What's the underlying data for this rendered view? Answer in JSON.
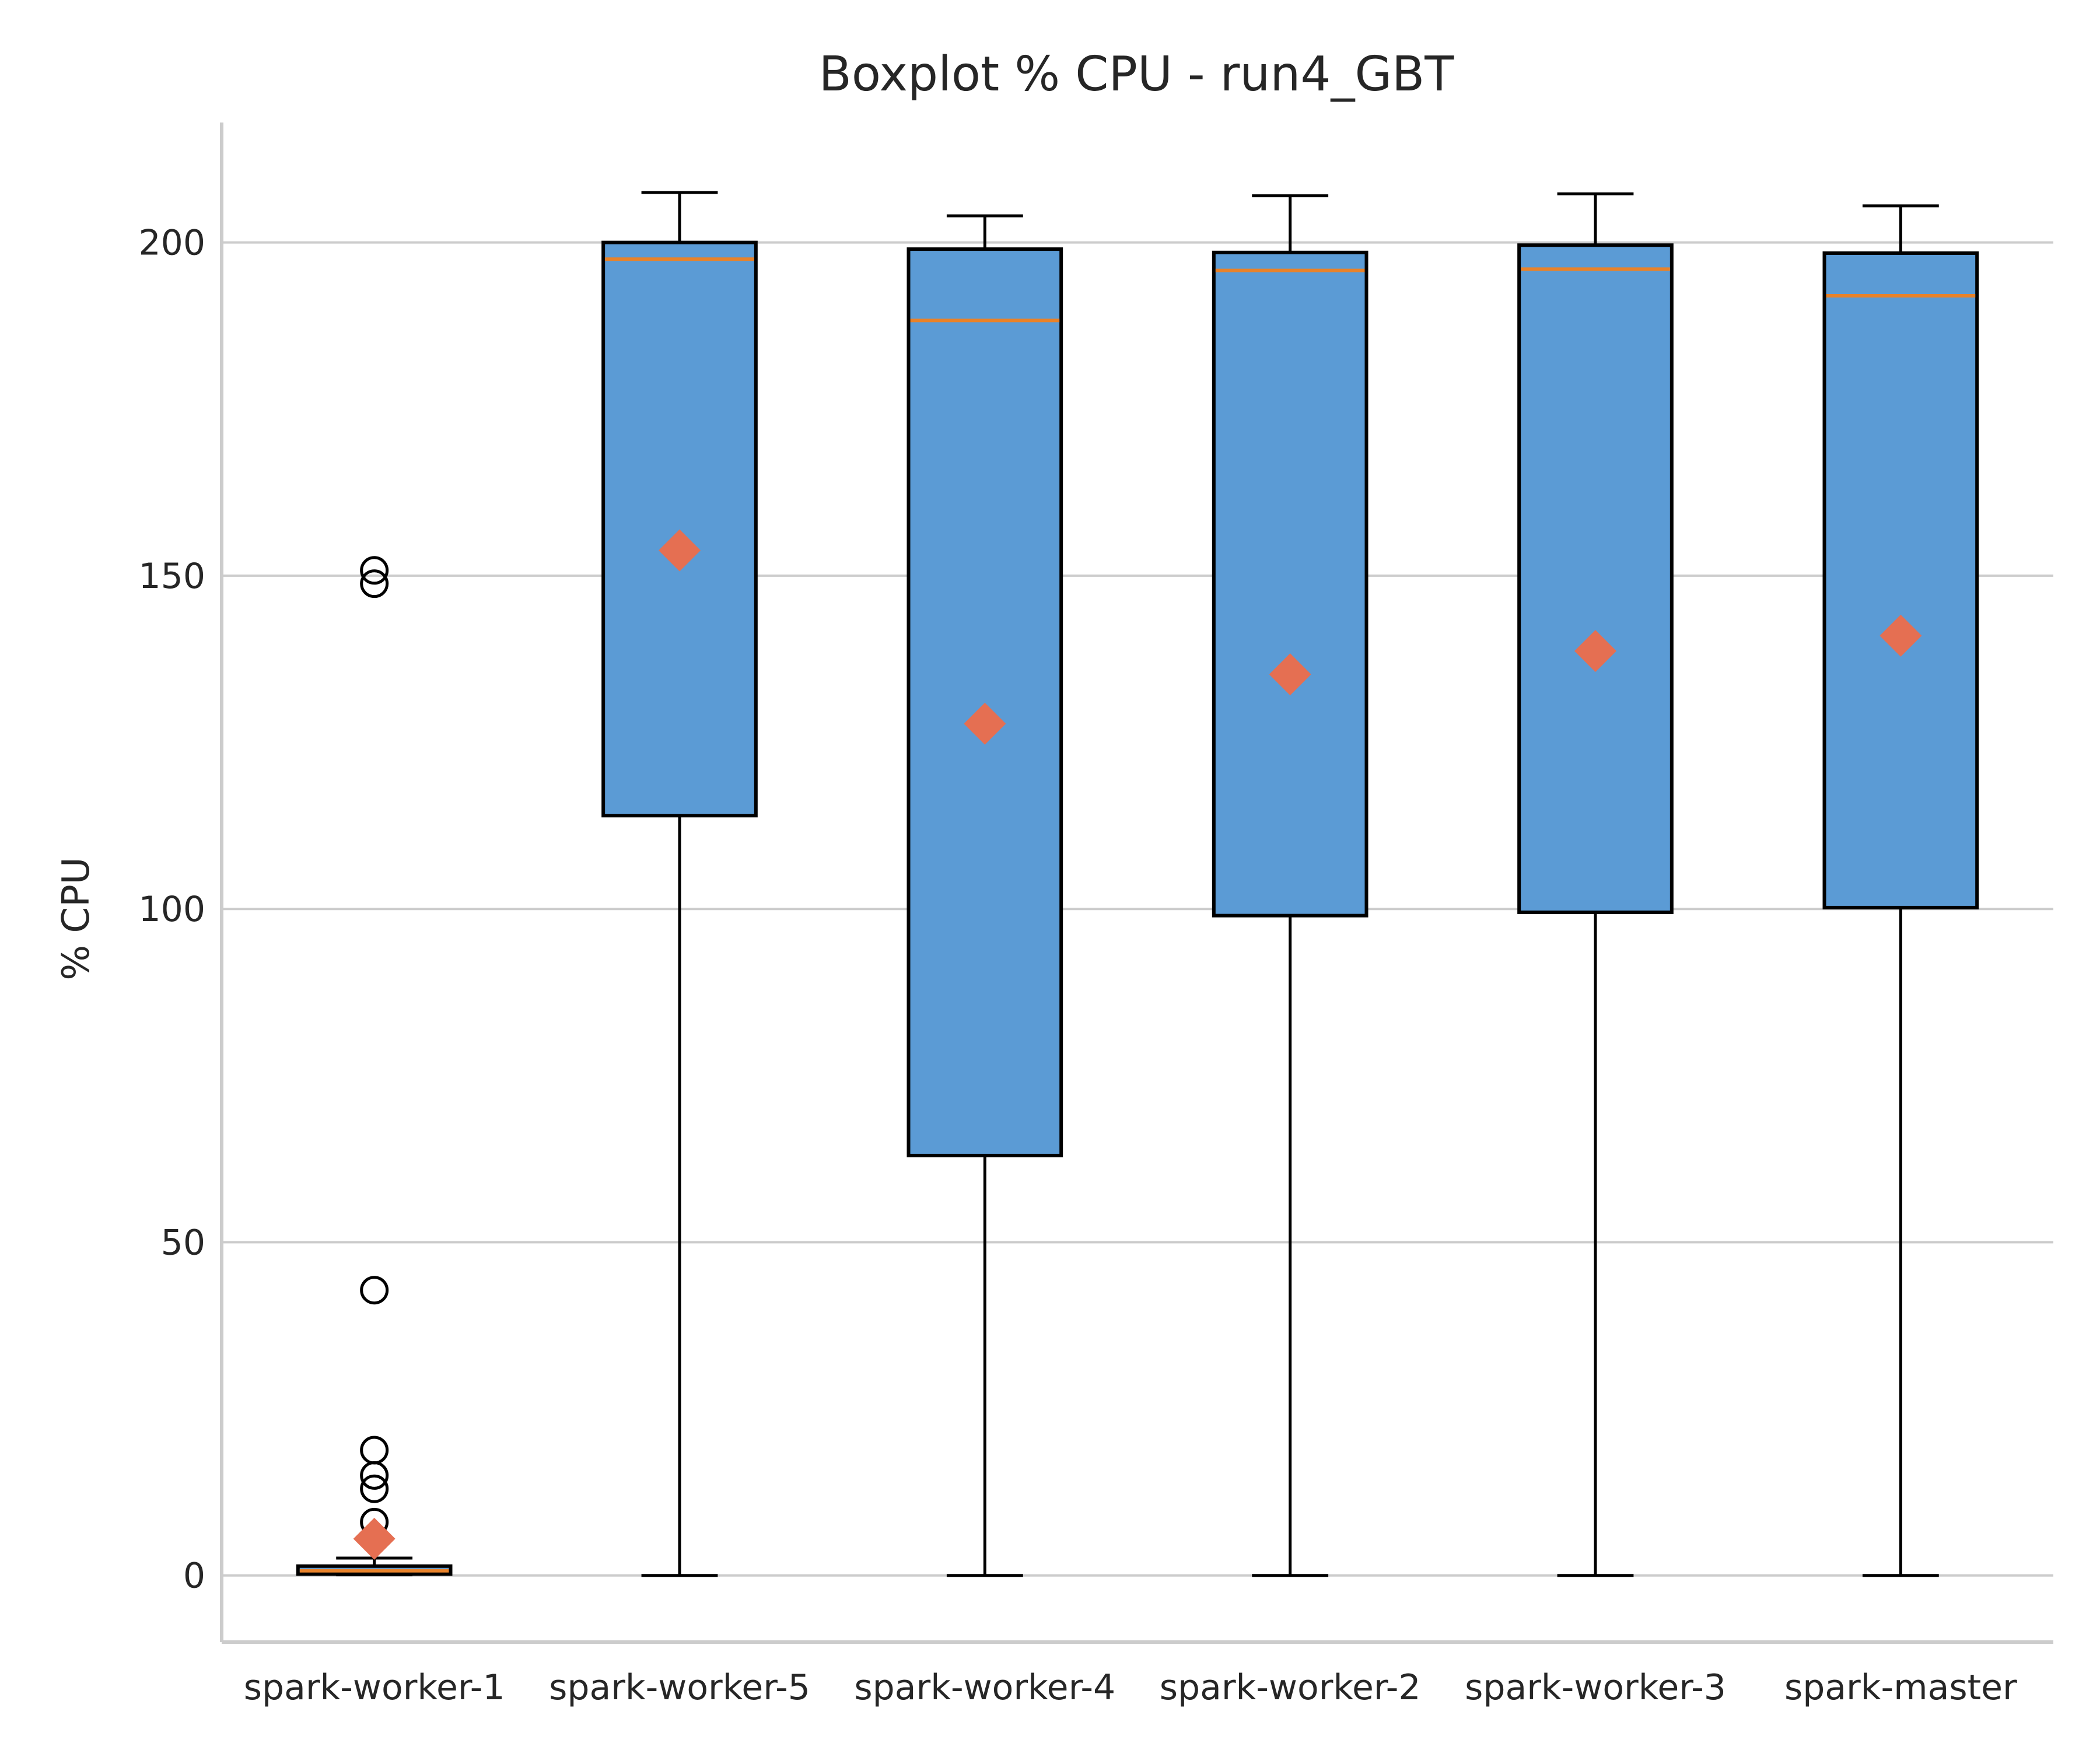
{
  "chart_data": {
    "type": "box",
    "title": "Boxplot % CPU - run4_GBT",
    "xlabel": "",
    "ylabel": "% CPU",
    "ylim": [
      -10,
      218
    ],
    "yticks": [
      0,
      50,
      100,
      150,
      200
    ],
    "grid": "horizontal",
    "categories": [
      "spark-worker-1",
      "spark-worker-5",
      "spark-worker-4",
      "spark-worker-2",
      "spark-worker-3",
      "spark-master"
    ],
    "boxes": [
      {
        "name": "spark-worker-1",
        "whislo": 0.1,
        "q1": 0.2,
        "med": 0.7,
        "q3": 1.4,
        "whishi": 2.6,
        "mean": 5.5,
        "fliers": [
          150.8,
          148.8,
          42.8,
          18.8,
          15.0,
          13.0,
          8.0
        ]
      },
      {
        "name": "spark-worker-5",
        "whislo": 0,
        "q1": 114,
        "med": 197.5,
        "q3": 200,
        "whishi": 207.5,
        "mean": 153.8,
        "fliers": []
      },
      {
        "name": "spark-worker-4",
        "whislo": 0,
        "q1": 63,
        "med": 188.3,
        "q3": 199,
        "whishi": 204,
        "mean": 127.8,
        "fliers": []
      },
      {
        "name": "spark-worker-2",
        "whislo": 0,
        "q1": 99,
        "med": 195.8,
        "q3": 198.5,
        "whishi": 207,
        "mean": 135.2,
        "fliers": []
      },
      {
        "name": "spark-worker-3",
        "whislo": 0,
        "q1": 99.5,
        "med": 196,
        "q3": 199.6,
        "whishi": 207.3,
        "mean": 138.7,
        "fliers": []
      },
      {
        "name": "spark-master",
        "whislo": 0,
        "q1": 100.2,
        "med": 192,
        "q3": 198.4,
        "whishi": 205.5,
        "mean": 141,
        "fliers": []
      }
    ],
    "colors": {
      "box": "#5b9bd5",
      "median": "#e8822a",
      "mean": "#e56f52",
      "grid": "#cccccc"
    }
  }
}
